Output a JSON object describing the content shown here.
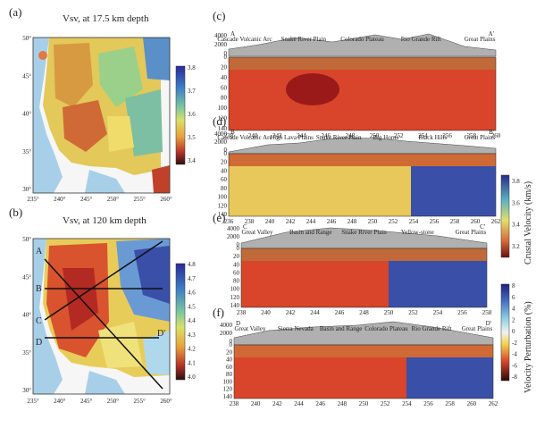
{
  "chart_data": [
    {
      "type": "heatmap",
      "panel": "(a)",
      "title": "Vsv, at 17.5 km depth",
      "xticks": [
        "235°",
        "240°",
        "245°",
        "250°",
        "255°",
        "260°"
      ],
      "yticks": [
        "50°",
        "45°",
        "40°",
        "35°",
        "30°"
      ],
      "colorbar_ticks": [
        "3.8",
        "3.7",
        "3.6",
        "3.5",
        "3.4"
      ]
    },
    {
      "type": "heatmap",
      "panel": "(b)",
      "title": "Vsv, at 120 km depth",
      "xticks": [
        "235°",
        "240°",
        "245°",
        "250°",
        "255°",
        "260°"
      ],
      "yticks": [
        "50°",
        "45°",
        "40°",
        "35°",
        "30°"
      ],
      "colorbar_ticks": [
        "4.8",
        "4.7",
        "4.6",
        "4.5",
        "4.4",
        "4.3",
        "4.2",
        "4.1",
        "4.0"
      ],
      "profile_labels": [
        "A",
        "A'",
        "B",
        "B'",
        "C",
        "C'",
        "D",
        "D'"
      ]
    },
    {
      "type": "heatmap",
      "panel": "(c)",
      "start": "A",
      "end": "A'",
      "features": [
        "Cascade Volcanic Arc",
        "Snake River Plain",
        "Colorado Plateau",
        "Rio Grande Rift",
        "Great Plains"
      ],
      "elev_ticks": [
        "4000",
        "2000",
        "0"
      ],
      "depth_ticks": [
        "0",
        "20",
        "40",
        "60",
        "80",
        "100",
        "120",
        "140"
      ],
      "xticks": [
        "238",
        "240",
        "242",
        "244",
        "246",
        "248",
        "250",
        "252",
        "254",
        "256",
        "258",
        "260"
      ]
    },
    {
      "type": "heatmap",
      "panel": "(d)",
      "start": "B",
      "end": "B'",
      "features": [
        "Cascade Volcanic Arc",
        "High Lava Plains",
        "Snake River Plain",
        "Big Horns",
        "Black Hills",
        "Great Plains"
      ],
      "elev_ticks": [
        "4000",
        "2000",
        "0"
      ],
      "depth_ticks": [
        "0",
        "20",
        "40",
        "60",
        "80",
        "100",
        "120",
        "140"
      ],
      "xticks": [
        "236",
        "238",
        "240",
        "242",
        "244",
        "246",
        "248",
        "250",
        "252",
        "254",
        "256",
        "258",
        "260",
        "262"
      ]
    },
    {
      "type": "heatmap",
      "panel": "(e)",
      "start": "C",
      "end": "C'",
      "features": [
        "Great Valley",
        "Basin and Range",
        "Snake River Plain",
        "Yellow-stone",
        "Great Plains"
      ],
      "elev_ticks": [
        "4000",
        "2000",
        "0"
      ],
      "depth_ticks": [
        "0",
        "20",
        "40",
        "60",
        "80",
        "100",
        "120",
        "140"
      ],
      "xticks": [
        "238",
        "240",
        "242",
        "244",
        "246",
        "248",
        "250",
        "252",
        "254",
        "256",
        "258"
      ]
    },
    {
      "type": "heatmap",
      "panel": "(f)",
      "start": "D",
      "end": "D'",
      "features": [
        "Great Valley",
        "Sierra Nevada",
        "Basin and Range",
        "Colorado Plateau",
        "Rio Grande Rift",
        "Great Plains"
      ],
      "elev_ticks": [
        "4000",
        "2000",
        "0"
      ],
      "depth_ticks": [
        "0",
        "20",
        "40",
        "60",
        "80",
        "100",
        "120",
        "140"
      ],
      "xticks": [
        "238",
        "240",
        "242",
        "244",
        "246",
        "248",
        "250",
        "252",
        "254",
        "256",
        "258",
        "260",
        "262"
      ]
    },
    {
      "type": "heatmap",
      "colorbar": "crustal",
      "label": "Crustal Velocity (km/s)",
      "ticks": [
        "3.8",
        "3.6",
        "3.4",
        "3.2"
      ]
    },
    {
      "type": "heatmap",
      "colorbar": "perturbation",
      "label": "Velocity Perturbation (%)",
      "ticks": [
        "8",
        "6",
        "4",
        "2",
        "0",
        "-2",
        "-4",
        "-6",
        "-8"
      ]
    }
  ]
}
